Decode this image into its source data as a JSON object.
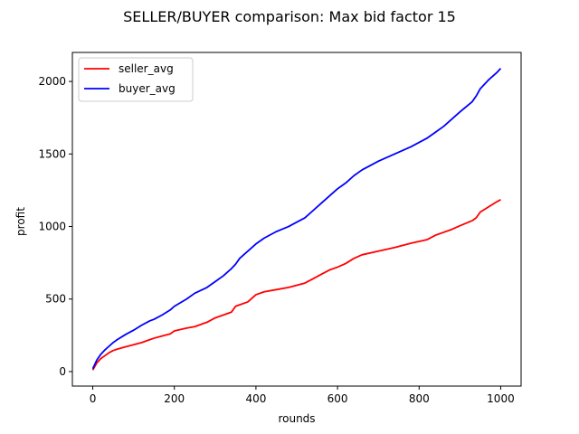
{
  "chart_data": {
    "type": "line",
    "title": "SELLER/BUYER comparison: Max bid factor 15",
    "xlabel": "rounds",
    "ylabel": "profit",
    "xlim": [
      -50,
      1050
    ],
    "ylim": [
      -100,
      2200
    ],
    "xticks": [
      0,
      200,
      400,
      600,
      800,
      1000
    ],
    "yticks": [
      0,
      500,
      1000,
      1500,
      2000
    ],
    "grid": false,
    "legend_position": "upper-left",
    "series": [
      {
        "name": "seller_avg",
        "color": "#ff0000",
        "x": [
          0,
          10,
          20,
          30,
          40,
          50,
          60,
          80,
          100,
          120,
          140,
          150,
          170,
          190,
          200,
          230,
          250,
          280,
          300,
          320,
          340,
          350,
          360,
          380,
          400,
          420,
          450,
          480,
          500,
          520,
          540,
          560,
          580,
          600,
          620,
          640,
          660,
          700,
          740,
          780,
          820,
          840,
          860,
          880,
          900,
          930,
          940,
          950,
          970,
          990,
          1000
        ],
        "y": [
          10,
          60,
          90,
          110,
          130,
          145,
          155,
          170,
          185,
          200,
          220,
          230,
          245,
          260,
          280,
          300,
          310,
          340,
          370,
          390,
          410,
          450,
          460,
          480,
          530,
          550,
          565,
          580,
          595,
          610,
          640,
          670,
          700,
          720,
          745,
          780,
          805,
          830,
          855,
          885,
          910,
          940,
          960,
          980,
          1005,
          1040,
          1060,
          1100,
          1135,
          1170,
          1185
        ]
      },
      {
        "name": "buyer_avg",
        "color": "#0000ff",
        "x": [
          0,
          10,
          20,
          30,
          40,
          50,
          60,
          80,
          100,
          120,
          140,
          150,
          170,
          190,
          200,
          230,
          250,
          280,
          300,
          320,
          340,
          350,
          360,
          380,
          400,
          420,
          450,
          480,
          500,
          520,
          540,
          560,
          580,
          600,
          620,
          640,
          660,
          700,
          740,
          780,
          820,
          840,
          860,
          880,
          900,
          930,
          940,
          950,
          970,
          990,
          1000
        ],
        "y": [
          20,
          80,
          120,
          150,
          175,
          200,
          220,
          255,
          285,
          320,
          350,
          360,
          390,
          425,
          450,
          500,
          540,
          580,
          620,
          660,
          710,
          740,
          780,
          830,
          880,
          920,
          965,
          1000,
          1030,
          1060,
          1110,
          1160,
          1210,
          1260,
          1300,
          1350,
          1390,
          1450,
          1500,
          1550,
          1610,
          1650,
          1690,
          1740,
          1790,
          1860,
          1900,
          1950,
          2010,
          2060,
          2090
        ]
      }
    ]
  }
}
